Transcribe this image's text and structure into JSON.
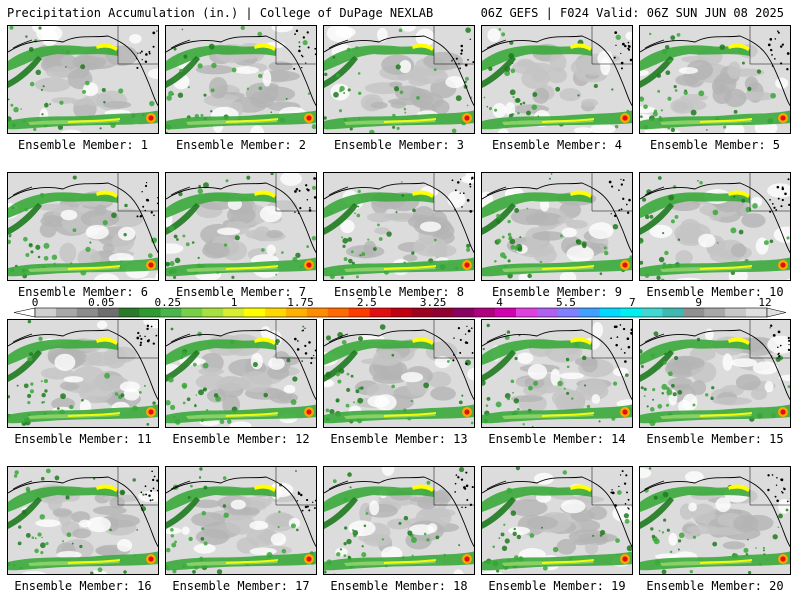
{
  "header": {
    "left": "Precipitation Accumulation (in.) | College of DuPage NEXLAB",
    "right": "06Z GEFS | F024 Valid: 06Z SUN JUN 08 2025"
  },
  "panels": [
    {
      "label": "Ensemble Member: 1"
    },
    {
      "label": "Ensemble Member: 2"
    },
    {
      "label": "Ensemble Member: 3"
    },
    {
      "label": "Ensemble Member: 4"
    },
    {
      "label": "Ensemble Member: 5"
    },
    {
      "label": "Ensemble Member: 6"
    },
    {
      "label": "Ensemble Member: 7"
    },
    {
      "label": "Ensemble Member: 8"
    },
    {
      "label": "Ensemble Member: 9"
    },
    {
      "label": "Ensemble Member: 10"
    },
    {
      "label": "Ensemble Member: 11"
    },
    {
      "label": "Ensemble Member: 12"
    },
    {
      "label": "Ensemble Member: 13"
    },
    {
      "label": "Ensemble Member: 14"
    },
    {
      "label": "Ensemble Member: 15"
    },
    {
      "label": "Ensemble Member: 16"
    },
    {
      "label": "Ensemble Member: 17"
    },
    {
      "label": "Ensemble Member: 18"
    },
    {
      "label": "Ensemble Member: 19"
    },
    {
      "label": "Ensemble Member: 20"
    }
  ],
  "colorbar": {
    "tick_labels": [
      "0",
      "0.05",
      "0.25",
      "1",
      "1.75",
      "2.5",
      "3.25",
      "4",
      "5.5",
      "7",
      "9",
      "12"
    ],
    "colors": [
      "#d0d0d0",
      "#a8a8a8",
      "#8c8c8c",
      "#6e6e6e",
      "#2a7a2a",
      "#2f9a2f",
      "#4cb44c",
      "#78d048",
      "#a8e040",
      "#d8ee30",
      "#ffff00",
      "#ffd800",
      "#ffb000",
      "#ff8c00",
      "#ff6a00",
      "#ff3c00",
      "#e01010",
      "#c00010",
      "#a00020",
      "#900030",
      "#880060",
      "#b00080",
      "#d000b0",
      "#e040e0",
      "#b060f0",
      "#8080ff",
      "#40a0ff",
      "#00d8ff",
      "#00f0f0",
      "#40d8d0",
      "#40b8b0",
      "#909090",
      "#a8a8a8",
      "#c8c8c8",
      "#e0e0e0"
    ]
  },
  "map_colors": {
    "light_gray": "#dcdcdc",
    "mid_gray": "#b4b4b4",
    "dark_gray": "#8c8c8c",
    "green_dark": "#1e7a1e",
    "green": "#3aa83a",
    "green_light": "#8fd46a",
    "yellow": "#ffff00",
    "orange": "#ffa500",
    "red": "#e01010",
    "coast": "#000000"
  }
}
